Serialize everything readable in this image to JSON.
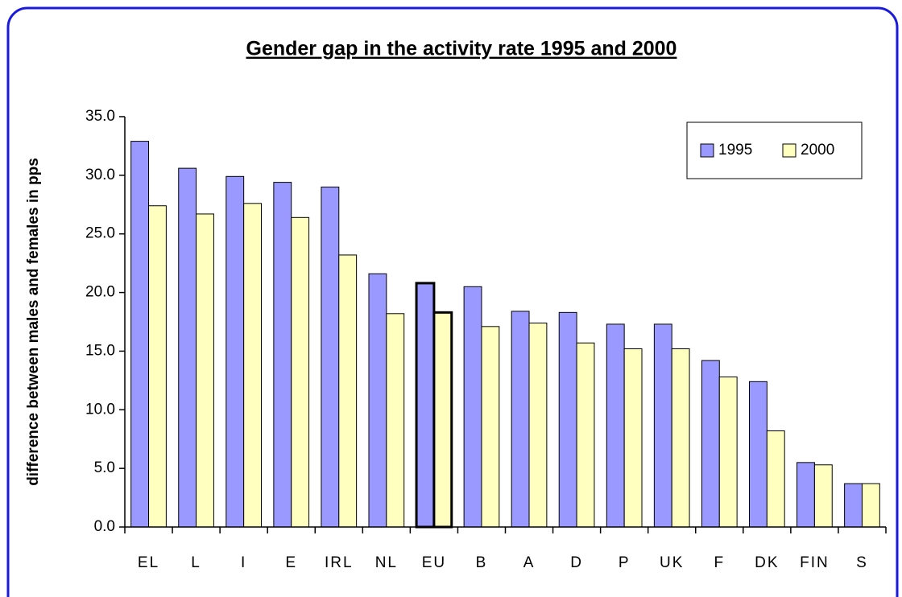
{
  "chart_data": {
    "type": "bar",
    "title": "Gender gap in the activity rate 1995 and 2000",
    "y_label": "difference between males and females in pps",
    "categories": [
      "EL",
      "L",
      "I",
      "E",
      "IRL",
      "NL",
      "EU",
      "B",
      "A",
      "D",
      "P",
      "UK",
      "F",
      "DK",
      "FIN",
      "S"
    ],
    "series": [
      {
        "name": "1995",
        "color": "#9999ff",
        "values": [
          32.9,
          30.6,
          29.9,
          29.4,
          29.0,
          21.6,
          20.8,
          20.5,
          18.4,
          18.3,
          17.3,
          17.3,
          14.2,
          12.4,
          5.5,
          3.7
        ]
      },
      {
        "name": "2000",
        "color": "#ffffc0",
        "values": [
          27.4,
          26.7,
          27.6,
          26.4,
          23.2,
          18.2,
          18.3,
          17.1,
          17.4,
          15.7,
          15.2,
          15.2,
          12.8,
          8.2,
          5.3,
          3.7
        ]
      }
    ],
    "highlight_index": 6,
    "ylim": [
      0,
      35
    ],
    "yticks": [
      {
        "value": 0,
        "label": "0.0"
      },
      {
        "value": 5,
        "label": "5.0"
      },
      {
        "value": 10,
        "label": "10.0"
      },
      {
        "value": 15,
        "label": "15.0"
      },
      {
        "value": 20,
        "label": "20.0"
      },
      {
        "value": 25,
        "label": "25.0"
      },
      {
        "value": 30,
        "label": "30.0"
      },
      {
        "value": 35,
        "label": "35.0"
      }
    ],
    "grid": false,
    "legend": "top-right"
  }
}
